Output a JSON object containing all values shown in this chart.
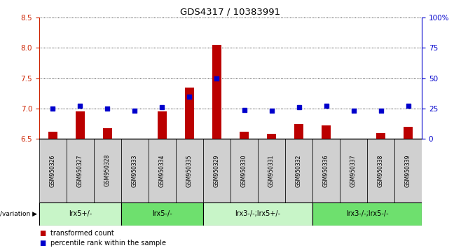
{
  "title": "GDS4317 / 10383991",
  "samples": [
    "GSM950326",
    "GSM950327",
    "GSM950328",
    "GSM950333",
    "GSM950334",
    "GSM950335",
    "GSM950329",
    "GSM950330",
    "GSM950331",
    "GSM950332",
    "GSM950336",
    "GSM950337",
    "GSM950338",
    "GSM950339"
  ],
  "transformed_count": [
    6.62,
    6.95,
    6.68,
    6.5,
    6.95,
    7.35,
    8.05,
    6.62,
    6.58,
    6.75,
    6.72,
    6.5,
    6.6,
    6.7
  ],
  "percentile_rank": [
    25,
    27,
    25,
    23,
    26,
    35,
    50,
    24,
    23,
    26,
    27,
    23,
    23,
    27
  ],
  "ylim_left": [
    6.5,
    8.5
  ],
  "ylim_right": [
    0,
    100
  ],
  "yticks_left": [
    6.5,
    7.0,
    7.5,
    8.0,
    8.5
  ],
  "yticks_right": [
    0,
    25,
    50,
    75,
    100
  ],
  "groups": [
    {
      "label": "lrx5+/-",
      "start": 0,
      "end": 3,
      "color": "#c8f5c8"
    },
    {
      "label": "lrx5-/-",
      "start": 3,
      "end": 6,
      "color": "#6ee06e"
    },
    {
      "label": "lrx3-/-;lrx5+/-",
      "start": 6,
      "end": 10,
      "color": "#c8f5c8"
    },
    {
      "label": "lrx3-/-;lrx5-/-",
      "start": 10,
      "end": 14,
      "color": "#6ee06e"
    }
  ],
  "bar_color": "#bb0000",
  "dot_color": "#0000cc",
  "bar_width": 0.35,
  "dot_size": 22,
  "ylabel_left_color": "#cc2200",
  "ylabel_right_color": "#0000cc",
  "legend_items": [
    {
      "label": "transformed count",
      "color": "#bb0000"
    },
    {
      "label": "percentile rank within the sample",
      "color": "#0000cc"
    }
  ],
  "group_label": "genotype/variation",
  "background_color": "#ffffff",
  "plot_bg_color": "#ffffff",
  "sample_bg_color": "#d0d0d0"
}
